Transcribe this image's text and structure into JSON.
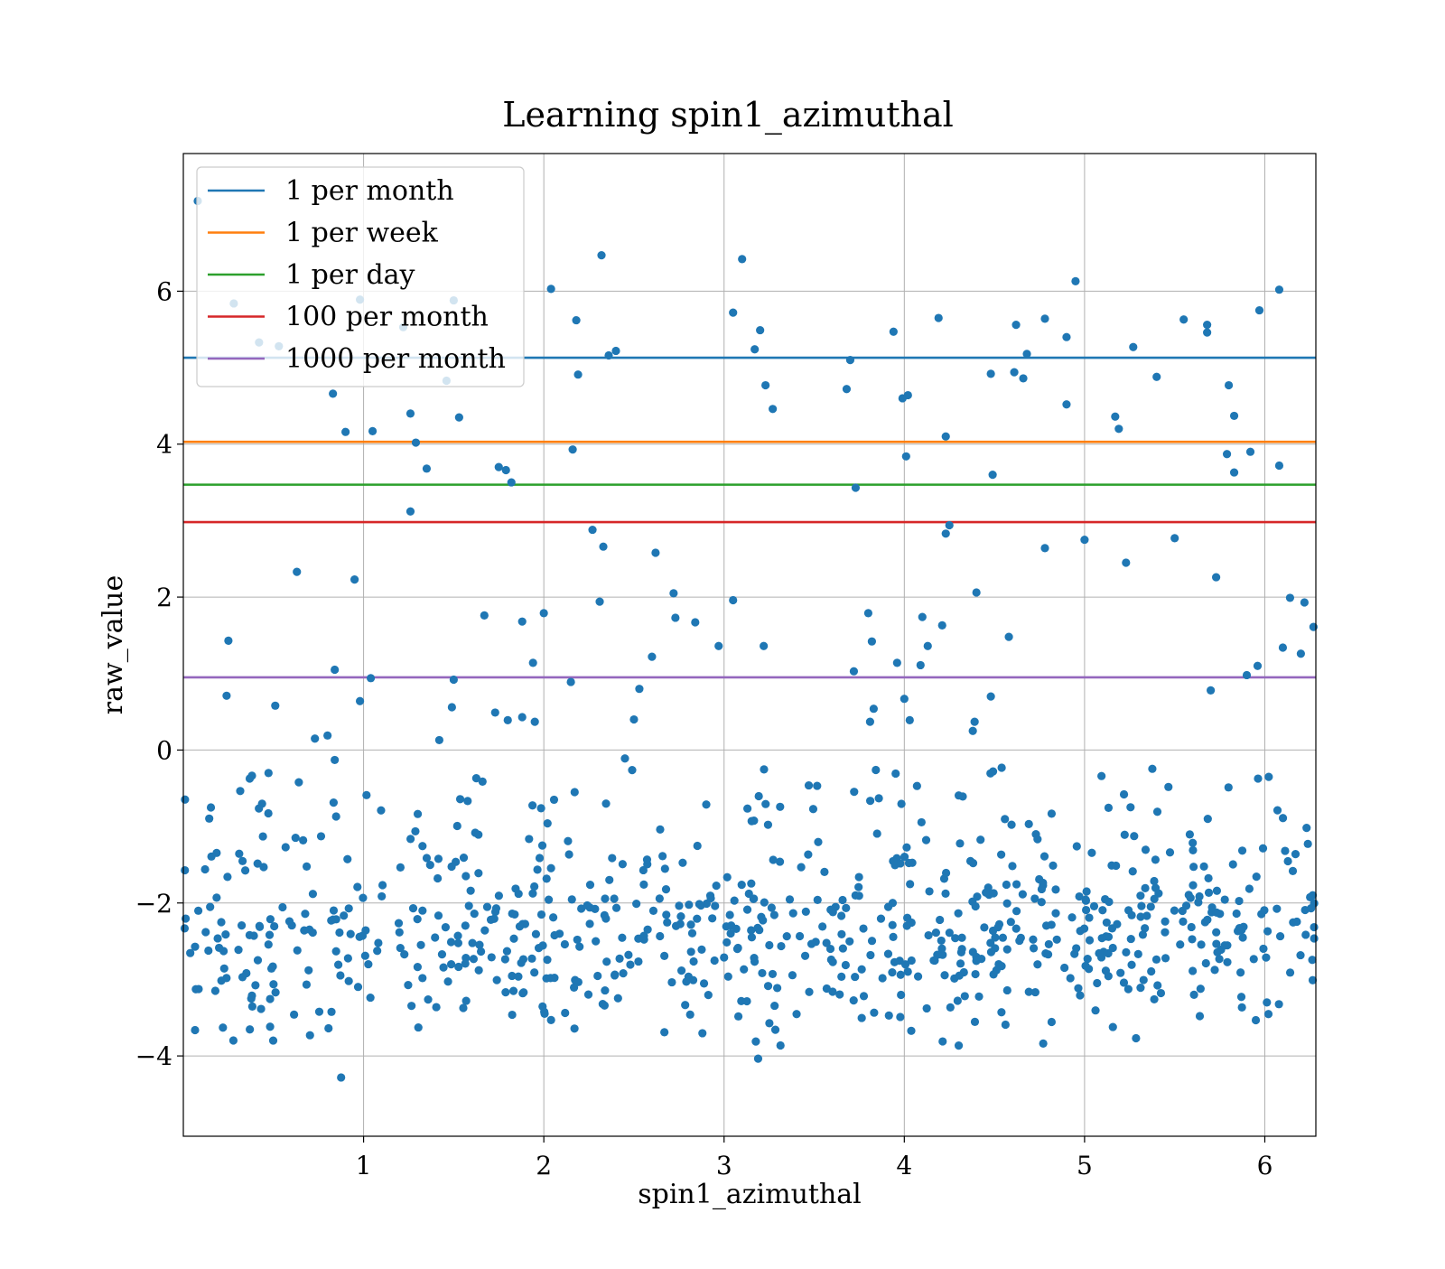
{
  "chart_data": {
    "type": "scatter",
    "title": "Learning spin1_azimuthal",
    "xlabel": "spin1_azimuthal",
    "ylabel": "raw_value",
    "xlim": [
      0,
      6.2832
    ],
    "ylim": [
      -5.05,
      7.8
    ],
    "x_ticks": [
      1,
      2,
      3,
      4,
      5,
      6
    ],
    "x_tick_labels": [
      "1",
      "2",
      "3",
      "4",
      "5",
      "6"
    ],
    "y_ticks": [
      -4,
      -2,
      0,
      2,
      4,
      6
    ],
    "y_tick_labels": [
      "−4",
      "−2",
      "0",
      "2",
      "4",
      "6"
    ],
    "grid": true,
    "legend": {
      "placement": "upper-left",
      "entries": [
        "1 per month",
        "1 per week",
        "1 per day",
        "100 per month",
        "1000 per month"
      ]
    },
    "hlines": [
      {
        "name": "1 per month",
        "y": 5.13,
        "color": "#1f77b4"
      },
      {
        "name": "1 per week",
        "y": 4.03,
        "color": "#ff7f0e"
      },
      {
        "name": "1 per day",
        "y": 3.47,
        "color": "#2ca02c"
      },
      {
        "name": "100 per month",
        "y": 2.98,
        "color": "#d62728"
      },
      {
        "name": "1000 per month",
        "y": 0.95,
        "color": "#9467bd"
      }
    ],
    "points_color": "#1f77b4",
    "points": [
      [
        0.08,
        7.18
      ],
      [
        0.28,
        5.84
      ],
      [
        0.42,
        5.33
      ],
      [
        0.53,
        5.28
      ],
      [
        0.83,
        4.66
      ],
      [
        0.9,
        4.16
      ],
      [
        1.05,
        4.17
      ],
      [
        1.22,
        5.53
      ],
      [
        1.26,
        4.4
      ],
      [
        1.29,
        4.02
      ],
      [
        1.35,
        3.68
      ],
      [
        1.26,
        3.12
      ],
      [
        1.46,
        4.83
      ],
      [
        1.5,
        5.88
      ],
      [
        1.53,
        4.35
      ],
      [
        0.98,
        5.89
      ],
      [
        2.04,
        6.03
      ],
      [
        2.18,
        5.62
      ],
      [
        2.19,
        4.91
      ],
      [
        2.16,
        3.93
      ],
      [
        2.32,
        6.47
      ],
      [
        2.36,
        5.16
      ],
      [
        2.4,
        5.22
      ],
      [
        1.75,
        3.7
      ],
      [
        1.79,
        3.66
      ],
      [
        1.82,
        3.5
      ],
      [
        2.27,
        2.88
      ],
      [
        2.33,
        2.66
      ],
      [
        2.31,
        1.94
      ],
      [
        2.62,
        2.58
      ],
      [
        3.1,
        6.42
      ],
      [
        3.05,
        5.72
      ],
      [
        3.2,
        5.49
      ],
      [
        3.17,
        5.24
      ],
      [
        3.23,
        4.77
      ],
      [
        3.27,
        4.46
      ],
      [
        2.72,
        2.05
      ],
      [
        2.73,
        1.73
      ],
      [
        2.84,
        1.67
      ],
      [
        2.97,
        1.36
      ],
      [
        3.05,
        1.96
      ],
      [
        3.22,
        1.36
      ],
      [
        3.7,
        5.1
      ],
      [
        3.68,
        4.72
      ],
      [
        3.94,
        5.47
      ],
      [
        3.99,
        4.6
      ],
      [
        4.02,
        4.64
      ],
      [
        4.01,
        3.84
      ],
      [
        3.73,
        3.43
      ],
      [
        4.19,
        5.65
      ],
      [
        4.23,
        4.1
      ],
      [
        4.25,
        2.94
      ],
      [
        4.23,
        2.83
      ],
      [
        4.4,
        2.06
      ],
      [
        4.48,
        4.92
      ],
      [
        4.49,
        3.6
      ],
      [
        4.62,
        5.56
      ],
      [
        4.61,
        4.94
      ],
      [
        4.66,
        4.86
      ],
      [
        4.68,
        5.18
      ],
      [
        4.78,
        5.64
      ],
      [
        4.9,
        5.4
      ],
      [
        4.9,
        4.52
      ],
      [
        4.95,
        6.13
      ],
      [
        4.78,
        2.64
      ],
      [
        5.0,
        2.75
      ],
      [
        5.17,
        4.36
      ],
      [
        5.19,
        4.2
      ],
      [
        5.27,
        5.27
      ],
      [
        5.4,
        4.88
      ],
      [
        5.23,
        2.45
      ],
      [
        5.5,
        2.77
      ],
      [
        5.55,
        5.63
      ],
      [
        5.68,
        5.56
      ],
      [
        5.68,
        5.46
      ],
      [
        5.8,
        4.77
      ],
      [
        5.83,
        4.37
      ],
      [
        5.83,
        3.63
      ],
      [
        5.79,
        3.87
      ],
      [
        5.73,
        2.26
      ],
      [
        5.92,
        3.9
      ],
      [
        5.97,
        5.75
      ],
      [
        6.08,
        6.02
      ],
      [
        6.08,
        3.72
      ],
      [
        6.14,
        1.99
      ],
      [
        6.2,
        1.26
      ],
      [
        6.22,
        1.93
      ],
      [
        6.27,
        1.61
      ],
      [
        6.1,
        1.34
      ],
      [
        5.96,
        1.1
      ],
      [
        5.9,
        0.98
      ],
      [
        5.7,
        0.78
      ],
      [
        0.63,
        2.33
      ],
      [
        0.95,
        2.23
      ],
      [
        0.25,
        1.43
      ],
      [
        0.84,
        1.05
      ],
      [
        0.24,
        0.71
      ],
      [
        0.51,
        0.58
      ],
      [
        1.04,
        0.94
      ],
      [
        0.98,
        0.64
      ],
      [
        1.5,
        0.92
      ],
      [
        1.49,
        0.56
      ],
      [
        1.42,
        0.13
      ],
      [
        0.8,
        0.19
      ],
      [
        0.73,
        0.15
      ],
      [
        0.84,
        -0.13
      ],
      [
        1.67,
        1.76
      ],
      [
        1.88,
        1.68
      ],
      [
        2.0,
        1.79
      ],
      [
        1.94,
        1.14
      ],
      [
        1.73,
        0.49
      ],
      [
        1.8,
        0.39
      ],
      [
        1.88,
        0.43
      ],
      [
        1.95,
        0.37
      ],
      [
        2.15,
        0.89
      ],
      [
        2.5,
        0.4
      ],
      [
        2.53,
        0.8
      ],
      [
        2.6,
        1.22
      ],
      [
        2.45,
        -0.11
      ],
      [
        3.72,
        1.03
      ],
      [
        3.8,
        1.79
      ],
      [
        3.82,
        1.42
      ],
      [
        3.83,
        0.54
      ],
      [
        3.81,
        0.37
      ],
      [
        3.96,
        1.14
      ],
      [
        4.0,
        0.67
      ],
      [
        4.03,
        0.39
      ],
      [
        4.1,
        1.74
      ],
      [
        4.09,
        1.11
      ],
      [
        4.13,
        1.36
      ],
      [
        4.21,
        1.63
      ],
      [
        4.39,
        0.37
      ],
      [
        4.38,
        0.25
      ],
      [
        4.48,
        0.7
      ],
      [
        4.58,
        1.48
      ]
    ]
  }
}
